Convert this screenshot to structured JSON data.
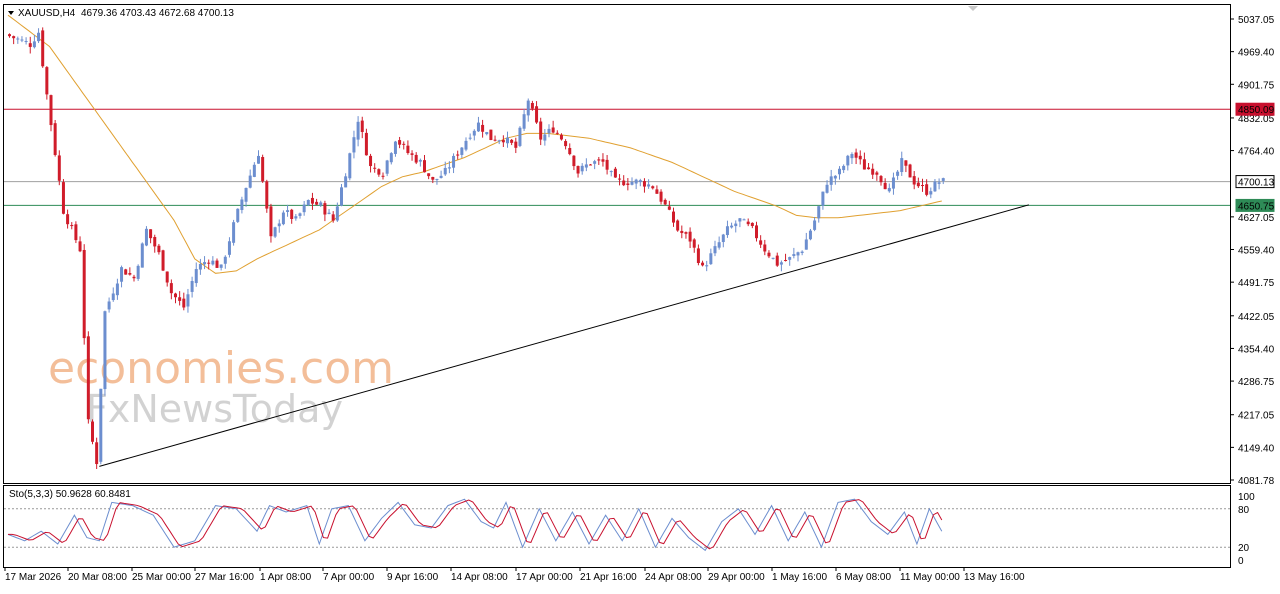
{
  "header": {
    "symbol": "XAUUSD,H4",
    "ohlc": "4679.36 4703.43 4672.68 4700.13"
  },
  "stoch_header": "Sto(5,3,3) 50.9628 60.8481",
  "watermark": {
    "line1": "economies.com",
    "line2": "FxNewsToday"
  },
  "colors": {
    "bull": "#6c8ecf",
    "bear": "#d01c2a",
    "ma": "#e0a030",
    "resistance": "#c8102e",
    "support": "#2e8b57",
    "current": "#a0a0a0",
    "trendline": "#000000",
    "stoch_main": "#6c8ecf",
    "stoch_signal": "#c8102e"
  },
  "chart_data": {
    "type": "candlestick",
    "symbol": "XAUUSD",
    "timeframe": "H4",
    "ylim": [
      4081.78,
      5037.05
    ],
    "y_ticks": [
      "5037.05",
      "4969.40",
      "4901.75",
      "4832.05",
      "4764.40",
      "4700.13",
      "4627.05",
      "4559.40",
      "4491.75",
      "4422.05",
      "4354.40",
      "4286.75",
      "4217.05",
      "4149.40",
      "4081.78"
    ],
    "x_ticks": [
      "17 Mar 2026",
      "20 Mar 08:00",
      "25 Mar 00:00",
      "27 Mar 16:00",
      "1 Apr 08:00",
      "7 Apr 00:00",
      "9 Apr 16:00",
      "14 Apr 08:00",
      "17 Apr 00:00",
      "21 Apr 16:00",
      "24 Apr 08:00",
      "29 Apr 00:00",
      "1 May 16:00",
      "6 May 08:00",
      "11 May 00:00",
      "13 May 16:00"
    ],
    "close_path": [
      [
        0,
        5005
      ],
      [
        6,
        4985
      ],
      [
        8,
        5010
      ],
      [
        10,
        4880
      ],
      [
        14,
        4640
      ],
      [
        18,
        4560
      ],
      [
        20,
        4200
      ],
      [
        22,
        4120
      ],
      [
        24,
        4430
      ],
      [
        28,
        4520
      ],
      [
        31,
        4500
      ],
      [
        34,
        4600
      ],
      [
        37,
        4550
      ],
      [
        40,
        4470
      ],
      [
        43,
        4440
      ],
      [
        46,
        4520
      ],
      [
        49,
        4540
      ],
      [
        52,
        4520
      ],
      [
        55,
        4610
      ],
      [
        58,
        4690
      ],
      [
        61,
        4760
      ],
      [
        64,
        4580
      ],
      [
        67,
        4640
      ],
      [
        70,
        4620
      ],
      [
        73,
        4660
      ],
      [
        76,
        4650
      ],
      [
        79,
        4620
      ],
      [
        82,
        4720
      ],
      [
        85,
        4830
      ],
      [
        88,
        4730
      ],
      [
        91,
        4720
      ],
      [
        94,
        4790
      ],
      [
        97,
        4760
      ],
      [
        100,
        4740
      ],
      [
        103,
        4700
      ],
      [
        106,
        4720
      ],
      [
        109,
        4760
      ],
      [
        112,
        4800
      ],
      [
        114,
        4820
      ],
      [
        117,
        4790
      ],
      [
        120,
        4790
      ],
      [
        123,
        4770
      ],
      [
        126,
        4870
      ],
      [
        129,
        4790
      ],
      [
        132,
        4810
      ],
      [
        135,
        4780
      ],
      [
        138,
        4720
      ],
      [
        141,
        4740
      ],
      [
        144,
        4740
      ],
      [
        147,
        4700
      ],
      [
        150,
        4700
      ],
      [
        153,
        4700
      ],
      [
        156,
        4690
      ],
      [
        159,
        4650
      ],
      [
        162,
        4600
      ],
      [
        165,
        4580
      ],
      [
        168,
        4520
      ],
      [
        171,
        4560
      ],
      [
        174,
        4600
      ],
      [
        177,
        4620
      ],
      [
        180,
        4600
      ],
      [
        183,
        4560
      ],
      [
        186,
        4530
      ],
      [
        189,
        4540
      ],
      [
        192,
        4560
      ],
      [
        195,
        4620
      ],
      [
        198,
        4700
      ],
      [
        201,
        4720
      ],
      [
        204,
        4760
      ],
      [
        207,
        4730
      ],
      [
        210,
        4720
      ],
      [
        213,
        4680
      ],
      [
        216,
        4740
      ],
      [
        219,
        4700
      ],
      [
        222,
        4680
      ],
      [
        225,
        4700
      ]
    ],
    "ma_path": [
      [
        0,
        5045
      ],
      [
        10,
        4980
      ],
      [
        20,
        4860
      ],
      [
        30,
        4740
      ],
      [
        40,
        4620
      ],
      [
        45,
        4540
      ],
      [
        50,
        4510
      ],
      [
        55,
        4515
      ],
      [
        60,
        4540
      ],
      [
        65,
        4560
      ],
      [
        70,
        4580
      ],
      [
        75,
        4600
      ],
      [
        80,
        4630
      ],
      [
        85,
        4660
      ],
      [
        90,
        4690
      ],
      [
        95,
        4710
      ],
      [
        100,
        4720
      ],
      [
        105,
        4735
      ],
      [
        110,
        4750
      ],
      [
        115,
        4770
      ],
      [
        120,
        4790
      ],
      [
        125,
        4800
      ],
      [
        130,
        4800
      ],
      [
        135,
        4795
      ],
      [
        140,
        4790
      ],
      [
        145,
        4780
      ],
      [
        150,
        4770
      ],
      [
        155,
        4755
      ],
      [
        160,
        4740
      ],
      [
        165,
        4720
      ],
      [
        170,
        4700
      ],
      [
        175,
        4680
      ],
      [
        180,
        4665
      ],
      [
        185,
        4650
      ],
      [
        190,
        4630
      ],
      [
        195,
        4625
      ],
      [
        200,
        4625
      ],
      [
        205,
        4630
      ],
      [
        210,
        4635
      ],
      [
        215,
        4640
      ],
      [
        220,
        4650
      ],
      [
        225,
        4660
      ]
    ],
    "levels": {
      "resistance": 4850.09,
      "current": 4700.13,
      "support": 4650.75
    },
    "trendline": {
      "start": [
        22,
        4110
      ],
      "end": [
        246,
        4652
      ]
    },
    "n_bars": 226,
    "stochastic": {
      "params": "5,3,3",
      "main": 50.9628,
      "signal": 60.8481,
      "levels": [
        80,
        20
      ],
      "scale_labels": [
        "100",
        "80",
        "20",
        "0"
      ],
      "cycle": [
        [
          0,
          40
        ],
        [
          4,
          30
        ],
        [
          8,
          45
        ],
        [
          12,
          25
        ],
        [
          16,
          70
        ],
        [
          19,
          35
        ],
        [
          22,
          30
        ],
        [
          25,
          90
        ],
        [
          30,
          85
        ],
        [
          35,
          70
        ],
        [
          40,
          20
        ],
        [
          45,
          30
        ],
        [
          50,
          85
        ],
        [
          55,
          80
        ],
        [
          60,
          45
        ],
        [
          63,
          85
        ],
        [
          67,
          75
        ],
        [
          72,
          85
        ],
        [
          75,
          25
        ],
        [
          78,
          80
        ],
        [
          82,
          85
        ],
        [
          86,
          30
        ],
        [
          90,
          65
        ],
        [
          94,
          90
        ],
        [
          98,
          55
        ],
        [
          102,
          50
        ],
        [
          106,
          85
        ],
        [
          110,
          95
        ],
        [
          114,
          60
        ],
        [
          117,
          50
        ],
        [
          120,
          90
        ],
        [
          124,
          20
        ],
        [
          128,
          80
        ],
        [
          132,
          30
        ],
        [
          136,
          75
        ],
        [
          140,
          25
        ],
        [
          144,
          70
        ],
        [
          148,
          30
        ],
        [
          152,
          80
        ],
        [
          156,
          20
        ],
        [
          160,
          65
        ],
        [
          164,
          35
        ],
        [
          168,
          15
        ],
        [
          172,
          60
        ],
        [
          176,
          80
        ],
        [
          180,
          40
        ],
        [
          184,
          85
        ],
        [
          188,
          30
        ],
        [
          192,
          75
        ],
        [
          196,
          20
        ],
        [
          200,
          90
        ],
        [
          204,
          95
        ],
        [
          208,
          60
        ],
        [
          212,
          40
        ],
        [
          216,
          75
        ],
        [
          219,
          25
        ],
        [
          222,
          80
        ],
        [
          225,
          45
        ]
      ]
    }
  }
}
